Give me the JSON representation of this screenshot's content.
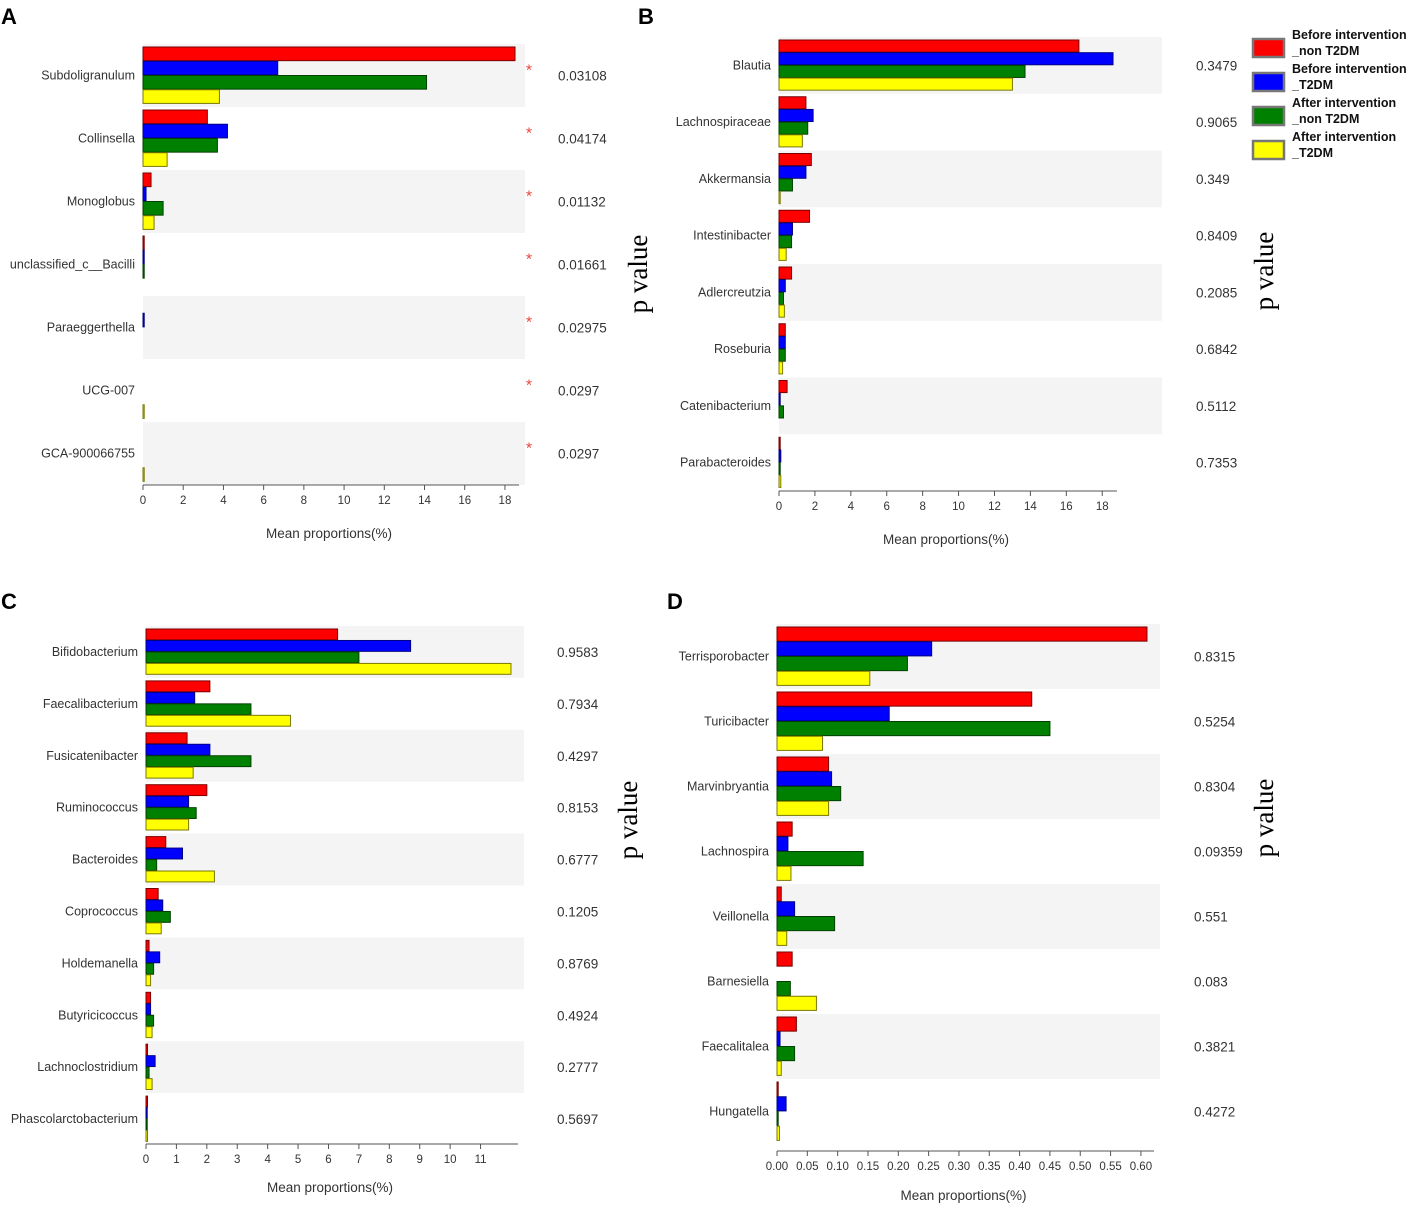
{
  "legend": {
    "items": [
      {
        "line1": "Before intervention",
        "line2": "_non T2DM",
        "color": "#ff0000"
      },
      {
        "line1": "Before intervention",
        "line2": "_T2DM",
        "color": "#0000ff"
      },
      {
        "line1": "After intervention",
        "line2": "_non T2DM",
        "color": "#008000"
      },
      {
        "line1": "After intervention",
        "line2": "_T2DM",
        "color": "#ffff00"
      }
    ]
  },
  "chart_data": [
    {
      "type": "bar",
      "panel": "A",
      "xlabel": "Mean proportions(%)",
      "pvalue_title": "p value",
      "xlim": [
        0,
        18.5
      ],
      "xticks": [
        0,
        2,
        4,
        6,
        8,
        10,
        12,
        14,
        16,
        18
      ],
      "tick_labels": [
        "0",
        "2",
        "4",
        "6",
        "8",
        "10",
        "12",
        "14",
        "16",
        "18"
      ],
      "categories": [
        "Subdoligranulum",
        "Collinsella",
        "Monoglobus",
        "unclassified_c__Bacilli",
        "Paraeggerthella",
        "UCG-007",
        "GCA-900066755"
      ],
      "pvalues": [
        "0.03108",
        "0.04174",
        "0.01132",
        "0.01661",
        "0.02975",
        "0.0297",
        "0.0297"
      ],
      "significance": [
        "*",
        "*",
        "*",
        "*",
        "*",
        "*",
        "*"
      ],
      "series": [
        {
          "name": "Before intervention_non T2DM",
          "values": [
            18.5,
            3.2,
            0.4,
            0.05,
            0,
            0,
            0
          ]
        },
        {
          "name": "Before intervention_T2DM",
          "values": [
            6.7,
            4.2,
            0.15,
            0.05,
            0.05,
            0,
            0
          ]
        },
        {
          "name": "After intervention_non T2DM",
          "values": [
            14.1,
            3.7,
            1.0,
            0.05,
            0,
            0,
            0
          ]
        },
        {
          "name": "After intervention_T2DM",
          "values": [
            3.8,
            1.2,
            0.55,
            0,
            0,
            0.05,
            0.05
          ]
        }
      ]
    },
    {
      "type": "bar",
      "panel": "B",
      "xlabel": "Mean proportions(%)",
      "pvalue_title": "p value",
      "xlim": [
        0,
        18.6
      ],
      "xticks": [
        0,
        2,
        4,
        6,
        8,
        10,
        12,
        14,
        16,
        18
      ],
      "tick_labels": [
        "0",
        "2",
        "4",
        "6",
        "8",
        "10",
        "12",
        "14",
        "16",
        "18"
      ],
      "categories": [
        "Blautia",
        "Lachnospiraceae",
        "Akkermansia",
        "Intestinibacter",
        "Adlercreutzia",
        "Roseburia",
        "Catenibacterium",
        "Parabacteroides"
      ],
      "pvalues": [
        "0.3479",
        "0.9065",
        "0.349",
        "0.8409",
        "0.2085",
        "0.6842",
        "0.5112",
        "0.7353"
      ],
      "series": [
        {
          "name": "Before intervention_non T2DM",
          "values": [
            16.7,
            1.5,
            1.8,
            1.7,
            0.7,
            0.35,
            0.45,
            0.05
          ]
        },
        {
          "name": "Before intervention_T2DM",
          "values": [
            18.6,
            1.9,
            1.5,
            0.75,
            0.35,
            0.35,
            0.05,
            0.1
          ]
        },
        {
          "name": "After intervention_non T2DM",
          "values": [
            13.7,
            1.6,
            0.75,
            0.7,
            0.25,
            0.35,
            0.25,
            0.05
          ]
        },
        {
          "name": "After intervention_T2DM",
          "values": [
            13.0,
            1.3,
            0.05,
            0.4,
            0.3,
            0.2,
            0,
            0.1
          ]
        }
      ]
    },
    {
      "type": "bar",
      "panel": "C",
      "xlabel": "Mean proportions(%)",
      "pvalue_title": "p value",
      "xlim": [
        0,
        12.1
      ],
      "xticks": [
        0,
        1,
        2,
        3,
        4,
        5,
        6,
        7,
        8,
        9,
        10,
        11
      ],
      "tick_labels": [
        "0",
        "1",
        "2",
        "3",
        "4",
        "5",
        "6",
        "7",
        "8",
        "9",
        "10",
        "11"
      ],
      "categories": [
        "Bifidobacterium",
        "Faecalibacterium",
        "Fusicatenibacter",
        "Ruminococcus",
        "Bacteroides",
        "Coprococcus",
        "Holdemanella",
        "Butyricicoccus",
        "Lachnoclostridium",
        "Phascolarctobacterium"
      ],
      "pvalues": [
        "0.9583",
        "0.7934",
        "0.4297",
        "0.8153",
        "0.6777",
        "0.1205",
        "0.8769",
        "0.4924",
        "0.2777",
        "0.5697"
      ],
      "series": [
        {
          "name": "Before intervention_non T2DM",
          "values": [
            6.3,
            2.1,
            1.35,
            2.0,
            0.65,
            0.4,
            0.1,
            0.15,
            0.05,
            0.05
          ]
        },
        {
          "name": "Before intervention_T2DM",
          "values": [
            8.7,
            1.6,
            2.1,
            1.4,
            1.2,
            0.55,
            0.45,
            0.15,
            0.3,
            0.02
          ]
        },
        {
          "name": "After intervention_non T2DM",
          "values": [
            7.0,
            3.45,
            3.45,
            1.65,
            0.35,
            0.8,
            0.25,
            0.25,
            0.1,
            0.02
          ]
        },
        {
          "name": "After intervention_T2DM",
          "values": [
            12.0,
            4.75,
            1.55,
            1.4,
            2.25,
            0.5,
            0.15,
            0.2,
            0.2,
            0.05
          ]
        }
      ]
    },
    {
      "type": "bar",
      "panel": "D",
      "xlabel": "Mean proportions(%)",
      "pvalue_title": "p value",
      "xlim": [
        0,
        0.615
      ],
      "xticks": [
        0,
        0.05,
        0.1,
        0.15,
        0.2,
        0.25,
        0.3,
        0.35,
        0.4,
        0.45,
        0.5,
        0.55,
        0.6
      ],
      "tick_labels": [
        "0.00",
        "0.05",
        "0.10",
        "0.15",
        "0.20",
        "0.25",
        "0.30",
        "0.35",
        "0.40",
        "0.45",
        "0.50",
        "0.55",
        "0.60"
      ],
      "categories": [
        "Terrisporobacter",
        "Turicibacter",
        "Marvinbryantia",
        "Lachnospira",
        "Veillonella",
        "Barnesiella",
        "Faecalitalea",
        "Hungatella"
      ],
      "pvalues": [
        "0.8315",
        "0.5254",
        "0.8304",
        "0.09359",
        "0.551",
        "0.083",
        "0.3821",
        "0.4272"
      ],
      "series": [
        {
          "name": "Before intervention_non T2DM",
          "values": [
            0.61,
            0.42,
            0.085,
            0.025,
            0.007,
            0.025,
            0.032,
            0.002
          ]
        },
        {
          "name": "Before intervention_T2DM",
          "values": [
            0.255,
            0.185,
            0.09,
            0.018,
            0.029,
            0,
            0.005,
            0.015
          ]
        },
        {
          "name": "After intervention_non T2DM",
          "values": [
            0.215,
            0.45,
            0.105,
            0.142,
            0.095,
            0.022,
            0.029,
            0.001
          ]
        },
        {
          "name": "After intervention_T2DM",
          "values": [
            0.153,
            0.075,
            0.085,
            0.023,
            0.016,
            0.065,
            0.007,
            0.004
          ]
        }
      ]
    }
  ]
}
